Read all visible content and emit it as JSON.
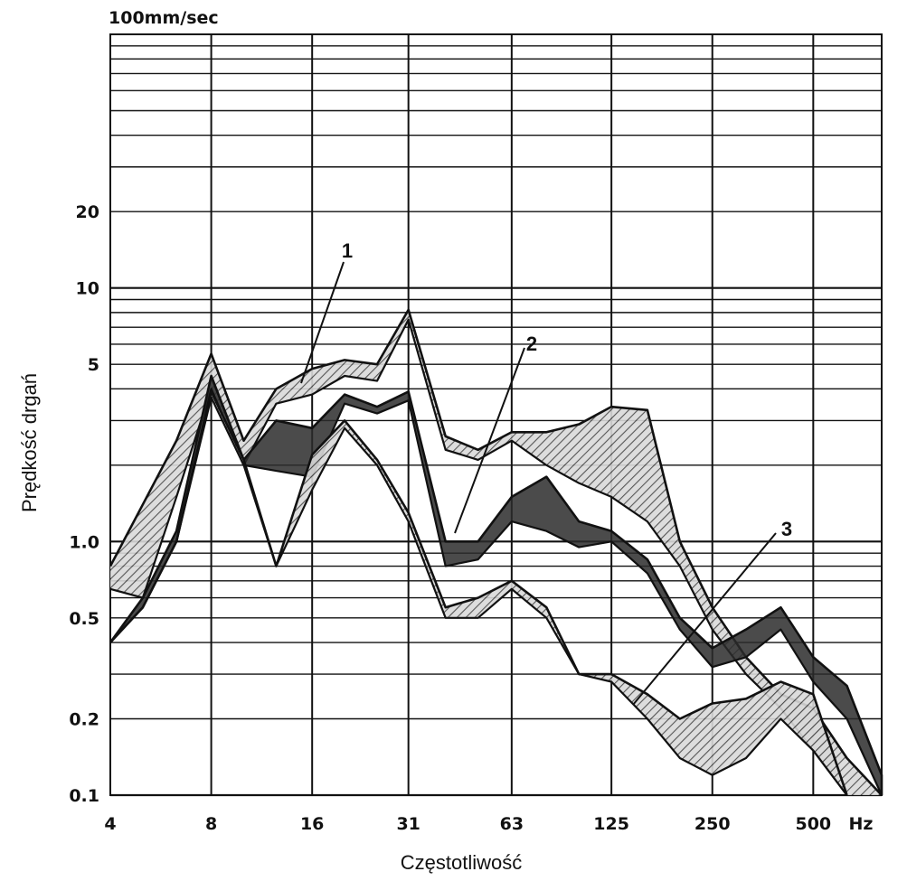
{
  "chart_data": {
    "type": "area",
    "scale": "log-log",
    "unit_label": "100mm/sec",
    "ylabel": "Prędkość drgań",
    "xlabel": "Częstotliwość",
    "x_ticks": [
      "4",
      "8",
      "16",
      "31",
      "63",
      "125",
      "250",
      "500",
      "Hz"
    ],
    "x_tick_values": [
      4,
      8,
      16,
      31,
      63,
      125,
      250,
      500
    ],
    "y_ticks": [
      "0.1",
      "0.2",
      "0.5",
      "1.0",
      "5",
      "10",
      "20"
    ],
    "y_tick_values": [
      0.1,
      0.2,
      0.5,
      1.0,
      5,
      10,
      20
    ],
    "xlim": [
      4,
      800
    ],
    "ylim": [
      0.1,
      100
    ],
    "grid": true,
    "bands": [
      {
        "callout": "1",
        "upper": [
          [
            4,
            0.8
          ],
          [
            5,
            1.4
          ],
          [
            6.3,
            2.5
          ],
          [
            8,
            5.5
          ],
          [
            10,
            2.5
          ],
          [
            12.5,
            4
          ],
          [
            16,
            4.8
          ],
          [
            20,
            5.2
          ],
          [
            25,
            5
          ],
          [
            31,
            8.2
          ],
          [
            40,
            2.6
          ],
          [
            50,
            2.3
          ],
          [
            63,
            2.7
          ],
          [
            80,
            2.7
          ],
          [
            100,
            2.9
          ],
          [
            125,
            3.4
          ],
          [
            160,
            3.3
          ],
          [
            200,
            1.0
          ],
          [
            250,
            0.55
          ],
          [
            315,
            0.35
          ],
          [
            400,
            0.25
          ],
          [
            500,
            0.22
          ],
          [
            630,
            0.14
          ],
          [
            800,
            0.1
          ]
        ],
        "lower": [
          [
            4,
            0.65
          ],
          [
            5,
            0.6
          ],
          [
            6.3,
            1.5
          ],
          [
            8,
            4.0
          ],
          [
            10,
            2.0
          ],
          [
            12.5,
            3.5
          ],
          [
            16,
            3.8
          ],
          [
            20,
            4.5
          ],
          [
            25,
            4.3
          ],
          [
            31,
            7.5
          ],
          [
            40,
            2.3
          ],
          [
            50,
            2.1
          ],
          [
            63,
            2.5
          ],
          [
            80,
            2.0
          ],
          [
            100,
            1.7
          ],
          [
            125,
            1.5
          ],
          [
            160,
            1.2
          ],
          [
            200,
            0.8
          ],
          [
            250,
            0.45
          ],
          [
            315,
            0.3
          ],
          [
            400,
            0.22
          ],
          [
            500,
            0.15
          ],
          [
            630,
            0.1
          ]
        ],
        "hatched": true
      },
      {
        "callout": "2",
        "upper": [
          [
            4,
            0.4
          ],
          [
            5,
            0.6
          ],
          [
            6.3,
            1.1
          ],
          [
            8,
            4.5
          ],
          [
            10,
            2.1
          ],
          [
            12.5,
            3.0
          ],
          [
            16,
            2.8
          ],
          [
            20,
            3.8
          ],
          [
            25,
            3.4
          ],
          [
            31,
            3.9
          ],
          [
            40,
            1.0
          ],
          [
            50,
            1.0
          ],
          [
            63,
            1.5
          ],
          [
            80,
            1.8
          ],
          [
            100,
            1.2
          ],
          [
            125,
            1.1
          ],
          [
            160,
            0.85
          ],
          [
            200,
            0.5
          ],
          [
            250,
            0.38
          ],
          [
            315,
            0.45
          ],
          [
            400,
            0.55
          ],
          [
            500,
            0.35
          ],
          [
            630,
            0.27
          ],
          [
            800,
            0.12
          ],
          [
            1000,
            0.1
          ]
        ],
        "lower": [
          [
            4,
            0.4
          ],
          [
            5,
            0.55
          ],
          [
            6.3,
            1.0
          ],
          [
            8,
            4.0
          ],
          [
            10,
            2.0
          ],
          [
            12.5,
            1.9
          ],
          [
            16,
            1.8
          ],
          [
            20,
            3.5
          ],
          [
            25,
            3.2
          ],
          [
            31,
            3.6
          ],
          [
            40,
            0.8
          ],
          [
            50,
            0.85
          ],
          [
            63,
            1.2
          ],
          [
            80,
            1.1
          ],
          [
            100,
            0.95
          ],
          [
            125,
            1.0
          ],
          [
            160,
            0.75
          ],
          [
            200,
            0.45
          ],
          [
            250,
            0.32
          ],
          [
            315,
            0.35
          ],
          [
            400,
            0.45
          ],
          [
            500,
            0.28
          ],
          [
            630,
            0.2
          ],
          [
            800,
            0.1
          ],
          [
            1000,
            0.1
          ]
        ],
        "hatched": false
      },
      {
        "callout": "3",
        "upper": [
          [
            4,
            0.4
          ],
          [
            5,
            0.55
          ],
          [
            6.3,
            1.0
          ],
          [
            8,
            3.9
          ],
          [
            10,
            2.1
          ],
          [
            12.5,
            0.8
          ],
          [
            16,
            2.2
          ],
          [
            20,
            3.0
          ],
          [
            25,
            2.1
          ],
          [
            31,
            1.3
          ],
          [
            40,
            0.55
          ],
          [
            50,
            0.6
          ],
          [
            63,
            0.7
          ],
          [
            80,
            0.55
          ],
          [
            100,
            0.3
          ],
          [
            125,
            0.3
          ],
          [
            160,
            0.25
          ],
          [
            200,
            0.2
          ],
          [
            250,
            0.23
          ],
          [
            315,
            0.24
          ],
          [
            400,
            0.28
          ],
          [
            500,
            0.25
          ],
          [
            630,
            0.1
          ]
        ],
        "lower": [
          [
            4,
            0.4
          ],
          [
            5,
            0.55
          ],
          [
            6.3,
            1.0
          ],
          [
            8,
            3.7
          ],
          [
            10,
            2.0
          ],
          [
            12.5,
            0.8
          ],
          [
            16,
            1.6
          ],
          [
            20,
            2.8
          ],
          [
            25,
            2.0
          ],
          [
            31,
            1.2
          ],
          [
            40,
            0.5
          ],
          [
            50,
            0.5
          ],
          [
            63,
            0.65
          ],
          [
            80,
            0.5
          ],
          [
            100,
            0.3
          ],
          [
            125,
            0.28
          ],
          [
            160,
            0.2
          ],
          [
            200,
            0.14
          ],
          [
            250,
            0.12
          ],
          [
            315,
            0.14
          ],
          [
            400,
            0.2
          ],
          [
            500,
            0.15
          ],
          [
            630,
            0.1
          ]
        ],
        "hatched": true
      }
    ]
  }
}
